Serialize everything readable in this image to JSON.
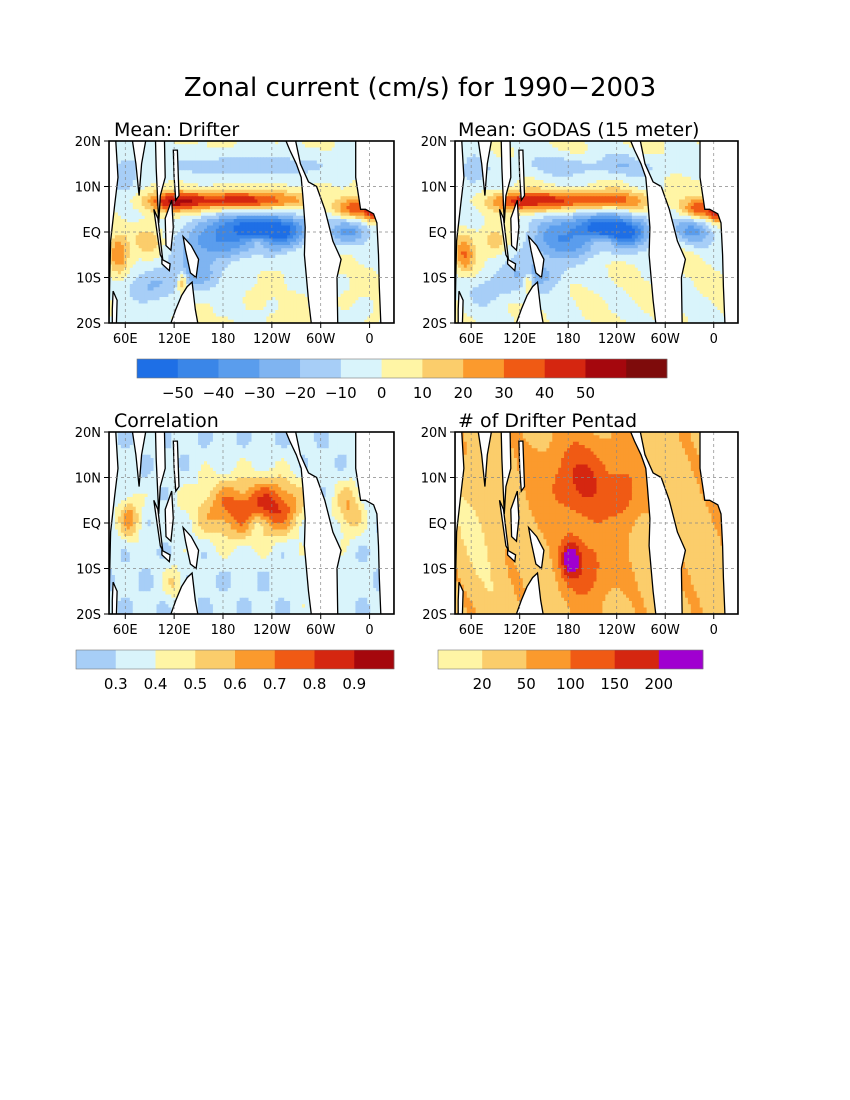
{
  "title": "Zonal current (cm/s) for 1990−2003",
  "axes": {
    "lat_ticks": [
      "20N",
      "10N",
      "EQ",
      "10S",
      "20S"
    ],
    "lon_ticks": [
      "60E",
      "120E",
      "180",
      "120W",
      "60W",
      "0"
    ],
    "lon_tick_values": [
      60,
      120,
      180,
      240,
      300,
      360
    ],
    "lat_tick_values": [
      20,
      10,
      0,
      -10,
      -20
    ],
    "xlim": [
      40,
      390
    ],
    "ylim": [
      -20,
      20
    ],
    "grid": "dashed lines at tick positions"
  },
  "chart_data": [
    {
      "type": "heatmap",
      "title": "Mean: Drifter",
      "variable": "zonal current",
      "unit": "cm/s",
      "features": {
        "north_equatorial_countercurrent_lat": 7,
        "south_equatorial_current_lat": 0,
        "peak_eastward": 50,
        "peak_westward": -50
      }
    },
    {
      "type": "heatmap",
      "title": "Mean: GODAS (15 meter)",
      "variable": "zonal current",
      "unit": "cm/s",
      "features": {
        "north_equatorial_countercurrent_lat": 7,
        "south_equatorial_current_lat": 0,
        "peak_eastward": 40,
        "peak_westward": -50
      }
    },
    {
      "type": "heatmap",
      "title": "Correlation",
      "features": {
        "max_correlation": 0.9,
        "high_corr_region": "tropical Pacific and Atlantic"
      }
    },
    {
      "type": "heatmap",
      "title": "# of Drifter Pentad",
      "features": {
        "max_count_region": "south-central Pacific near 180, 8S",
        "max_bin": ">200"
      }
    }
  ],
  "colorbars": {
    "current": {
      "labels": [
        "−50",
        "−40",
        "−30",
        "−20",
        "−10",
        "0",
        "10",
        "20",
        "30",
        "40",
        "50"
      ],
      "colors": [
        "#1e6fe6",
        "#3a86e8",
        "#5a9ded",
        "#7fb4f1",
        "#a7cef7",
        "#d9f4fb",
        "#fff5a5",
        "#fbcd6b",
        "#fb9a2d",
        "#f05a14",
        "#d52610",
        "#a5070d",
        "#7e0b0b"
      ]
    },
    "correlation": {
      "labels": [
        "0.3",
        "0.4",
        "0.5",
        "0.6",
        "0.7",
        "0.8",
        "0.9"
      ],
      "colors": [
        "#a7cef7",
        "#d9f4fb",
        "#fff5a5",
        "#fbcd6b",
        "#fb9a2d",
        "#f05a14",
        "#d52610",
        "#a5070d"
      ]
    },
    "count": {
      "labels": [
        "20",
        "50",
        "100",
        "150",
        "200"
      ],
      "colors": [
        "#fff5a5",
        "#fbcd6b",
        "#fb9a2d",
        "#f05a14",
        "#d52610",
        "#a000d0"
      ]
    }
  },
  "colors": {
    "land": "#ffffff",
    "coast": "#000000",
    "grid": "#888888"
  }
}
